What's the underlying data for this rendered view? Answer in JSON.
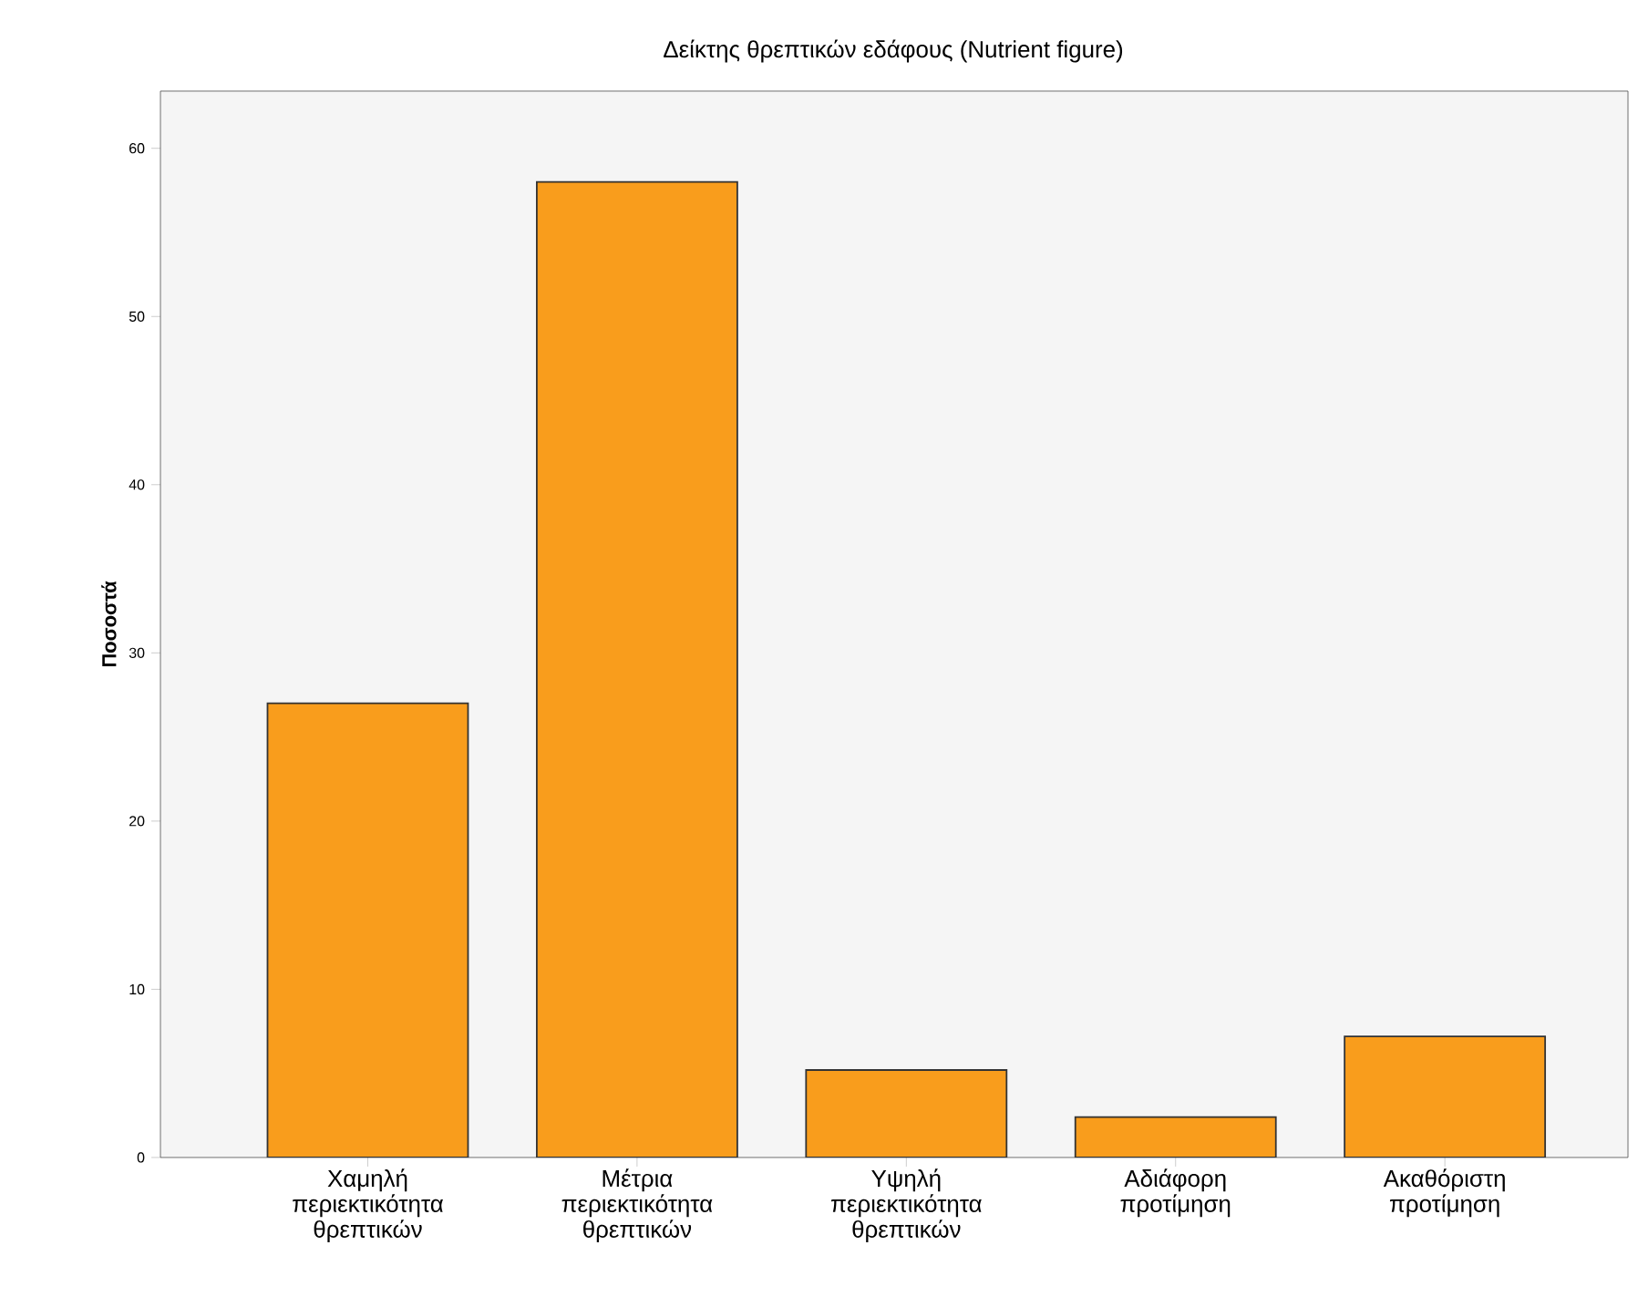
{
  "chart_data": {
    "type": "bar",
    "title": "Δείκτης θρεπτικών εδάφους (Nutrient figure)",
    "ylabel": "Ποσοστά",
    "categories": [
      "Χαμηλή περιεκτικότητα θρεπτικών",
      "Μέτρια περιεκτικότητα θρεπτικών",
      "Υψηλή περιεκτικότητα θρεπτικών",
      "Αδιάφορη προτίμηση",
      "Ακαθόριστη προτίμηση"
    ],
    "values": [
      27,
      58,
      5.2,
      2.4,
      7.2
    ],
    "color": "#f99d1c",
    "ylim": [
      0,
      63.4
    ],
    "yticks": [
      0,
      10,
      20,
      30,
      40,
      50,
      60
    ],
    "grid": false
  }
}
